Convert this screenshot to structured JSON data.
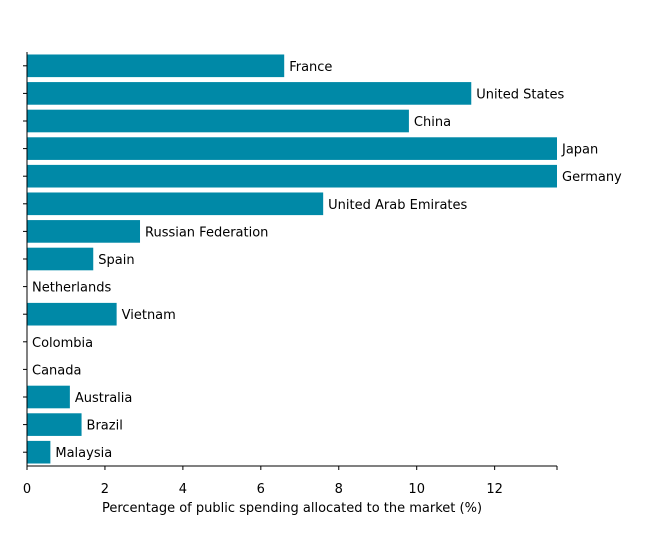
{
  "chart_data": {
    "type": "bar",
    "orientation": "horizontal",
    "categories": [
      "France",
      "United States",
      "China",
      "Japan",
      "Germany",
      "United Arab Emirates",
      "Russian Federation",
      "Spain",
      "Netherlands",
      "Vietnam",
      "Colombia",
      "Canada",
      "Australia",
      "Brazil",
      "Malaysia"
    ],
    "values": [
      6.6,
      11.4,
      9.8,
      13.6,
      13.6,
      7.6,
      2.9,
      1.7,
      0,
      2.3,
      0,
      0,
      1.1,
      1.4,
      0.6
    ],
    "xlabel": "Percentage of public spending allocated to the market (%)",
    "ylabel": "",
    "xlim": [
      0,
      13.6
    ],
    "xticks": [
      "0",
      "2",
      "4",
      "6",
      "8",
      "10",
      "12"
    ],
    "bar_color": "#0089a7",
    "grid": false,
    "legend": "none"
  }
}
